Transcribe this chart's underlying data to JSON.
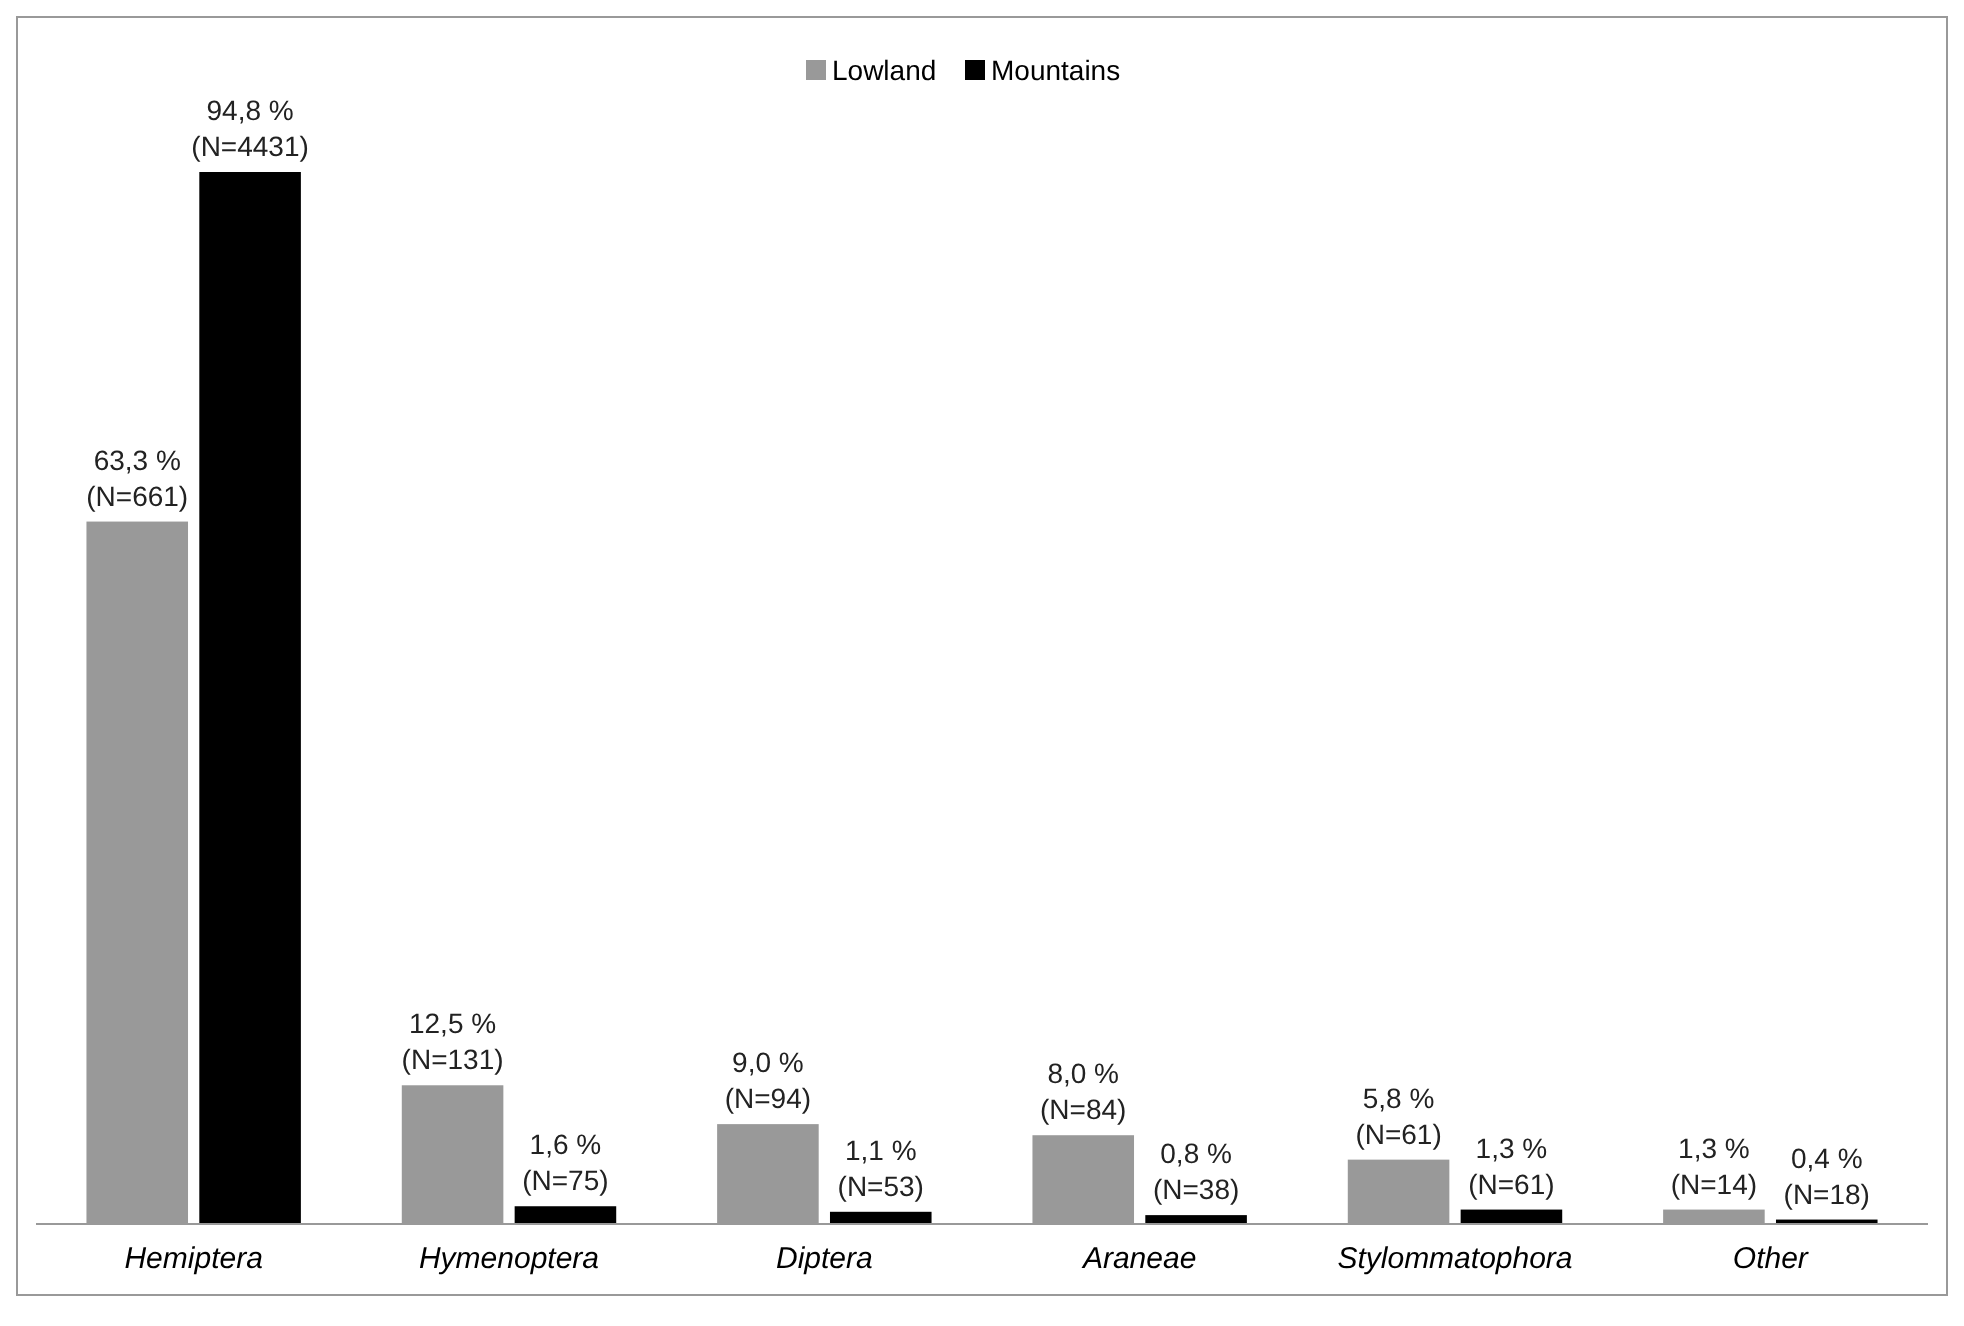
{
  "chart_data": {
    "type": "bar",
    "categories": [
      "Hemiptera",
      "Hymenoptera",
      "Diptera",
      "Araneae",
      "Stylommatophora",
      "Other"
    ],
    "series": [
      {
        "name": "Lowland",
        "color": "#999999",
        "values": [
          63.3,
          12.5,
          9.0,
          8.0,
          5.8,
          1.3
        ],
        "value_labels": [
          "63,3 %\n(N=661)",
          "12,5 %\n(N=131)",
          "9,0 %\n(N=94)",
          "8,0 %\n(N=84)",
          "5,8 %\n(N=61)",
          "1,3 %\n(N=14)"
        ]
      },
      {
        "name": "Mountains",
        "color": "#000000",
        "values": [
          94.8,
          1.6,
          1.1,
          0.8,
          1.3,
          0.4
        ],
        "value_labels": [
          "94,8 %\n(N=4431)",
          "1,6 %\n(N=75)",
          "1,1 %\n(N=53)",
          "0,8 %\n(N=38)",
          "1,3 %\n(N=61)",
          "0,4 %\n(N=18)"
        ]
      }
    ],
    "legend": "top"
  }
}
